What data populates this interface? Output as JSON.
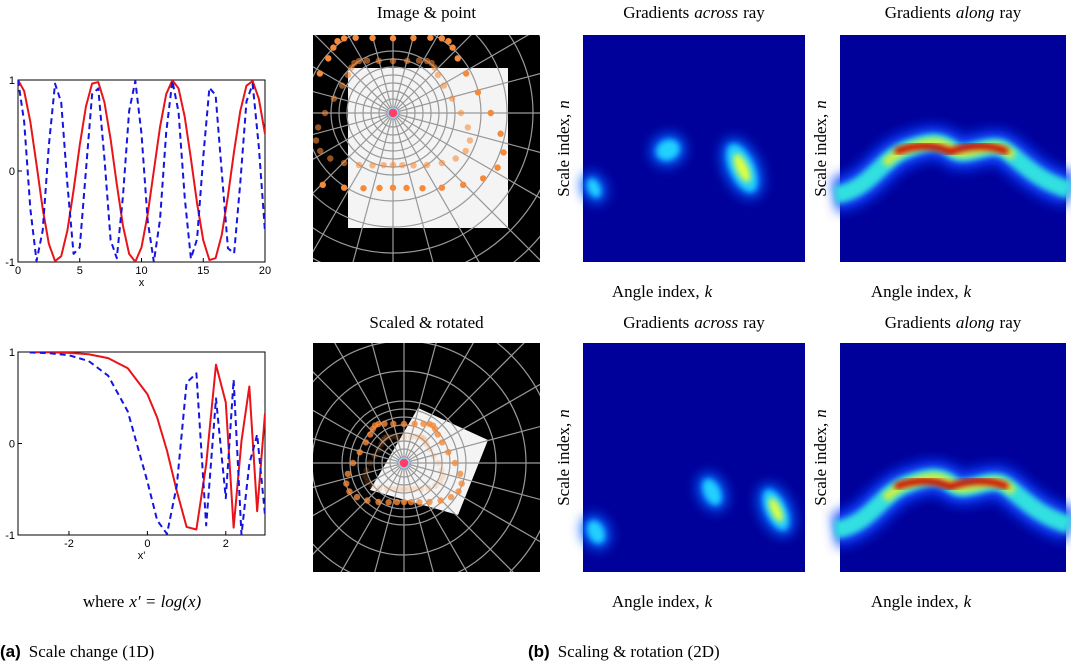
{
  "chart_data": [
    {
      "type": "line",
      "x_label": "x",
      "x": [
        0,
        0.5,
        1,
        1.5,
        2,
        2.5,
        3,
        3.5,
        4,
        4.5,
        5,
        5.5,
        6,
        6.5,
        7,
        7.5,
        8,
        8.5,
        9,
        9.5,
        10,
        10.5,
        11,
        11.5,
        12,
        12.5,
        13,
        13.5,
        14,
        14.5,
        15,
        15.5,
        16,
        16.5,
        17,
        17.5,
        18,
        18.5,
        19,
        19.5,
        20
      ],
      "series": [
        {
          "color": "#e8141a",
          "dash": false,
          "values": [
            1,
            0.878,
            0.54,
            0.071,
            -0.416,
            -0.801,
            -0.99,
            -0.936,
            -0.654,
            -0.211,
            0.284,
            0.709,
            0.96,
            0.977,
            0.754,
            0.347,
            -0.146,
            -0.602,
            -0.911,
            -0.997,
            -0.839,
            -0.476,
            0.004,
            0.483,
            0.844,
            0.998,
            0.907,
            0.595,
            0.137,
            -0.355,
            -0.76,
            -0.979,
            -0.958,
            -0.7,
            -0.275,
            0.22,
            0.66,
            0.938,
            0.989,
            0.795,
            0.408
          ]
        },
        {
          "color": "#1515e0",
          "dash": true,
          "values": [
            1,
            0.54,
            -0.416,
            -0.99,
            -0.654,
            0.284,
            0.96,
            0.754,
            -0.146,
            -0.911,
            -0.839,
            0.004,
            0.844,
            0.907,
            0.137,
            -0.76,
            -0.958,
            -0.275,
            0.66,
            0.989,
            0.408,
            -0.548,
            -1,
            -0.533,
            0.424,
            0.991,
            0.647,
            -0.292,
            -0.963,
            -0.748,
            0.154,
            0.915,
            0.834,
            -0.013,
            -0.849,
            -0.904,
            -0.128,
            0.765,
            0.955,
            0.267,
            -0.667
          ]
        }
      ],
      "xlim": [
        0,
        20
      ],
      "ylim": [
        -1,
        1
      ],
      "xticks": [
        0,
        5,
        10,
        15,
        20
      ],
      "yticks": [
        -1,
        0,
        1
      ]
    },
    {
      "type": "line",
      "x_label": "x'",
      "x": [
        -3,
        -2.5,
        -2,
        -1.5,
        -1,
        -0.5,
        0,
        0.25,
        0.5,
        0.75,
        1,
        1.25,
        1.5,
        1.75,
        2,
        2.2,
        2.4,
        2.6,
        2.8,
        3
      ],
      "series": [
        {
          "color": "#e8141a",
          "dash": false,
          "values": [
            0.999,
            0.997,
            0.991,
            0.975,
            0.933,
            0.822,
            0.54,
            0.283,
            -0.078,
            -0.519,
            -0.912,
            -0.94,
            -0.227,
            0.862,
            0.448,
            -0.92,
            0.027,
            0.623,
            -0.74,
            0.328
          ]
        },
        {
          "color": "#1515e0",
          "dash": true,
          "values": [
            0.995,
            0.987,
            0.964,
            0.902,
            0.741,
            0.35,
            -0.416,
            -0.84,
            -0.988,
            -0.46,
            0.664,
            0.767,
            -0.895,
            0.493,
            -0.598,
            0.697,
            -0.998,
            -0.222,
            0.097,
            -0.782
          ]
        }
      ],
      "xlim": [
        -3.3,
        3
      ],
      "ylim": [
        -1,
        1
      ],
      "xticks": [
        -2,
        0,
        2
      ],
      "yticks": [
        -1,
        0,
        1
      ]
    }
  ],
  "figure_a": {
    "caption": [
      "where",
      "x′ = log(x)"
    ],
    "label": "(a)",
    "title": "Scale change (1D)"
  },
  "figure_b": {
    "label": "(b)",
    "title": "Scaling & rotation (2D)",
    "rows": [
      {
        "image_title": "Image & point",
        "across_title": [
          "Gradients",
          "across",
          "ray"
        ],
        "along_title": [
          "Gradients",
          "along",
          "ray"
        ]
      },
      {
        "image_title": "Scaled & rotated",
        "across_title": [
          "Gradients",
          "across",
          "ray"
        ],
        "along_title": [
          "Gradients",
          "along",
          "ray"
        ]
      }
    ],
    "y_label": [
      "Scale index,",
      "n"
    ],
    "x_label": [
      "Angle index,",
      "k"
    ]
  }
}
